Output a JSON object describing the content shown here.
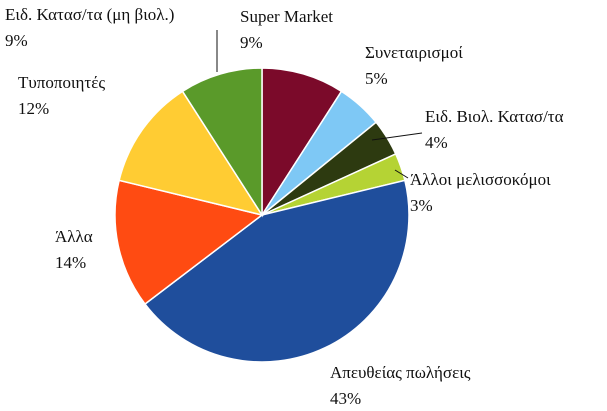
{
  "chart_data": {
    "type": "pie",
    "categories": [
      "Super Market",
      "Συνεταιρισμοί",
      "Ειδ. Βιολ. Κατασ/τα",
      "Άλλοι μελισσοκόμοι",
      "Απευθείας πωλήσεις",
      "Άλλα",
      "Τυποποιητές",
      "Ειδ. Κατασ/τα (μη βιολ.)"
    ],
    "values": [
      9,
      5,
      4,
      3,
      43,
      14,
      12,
      9
    ],
    "value_labels": [
      "9%",
      "5%",
      "4%",
      "3%",
      "43%",
      "14%",
      "12%",
      "9%"
    ],
    "colors": [
      "#7b0a2a",
      "#7ec8f5",
      "#2d3a10",
      "#b5d334",
      "#1f4e9c",
      "#ff4b12",
      "#ffcc33",
      "#5a9a2a"
    ]
  }
}
